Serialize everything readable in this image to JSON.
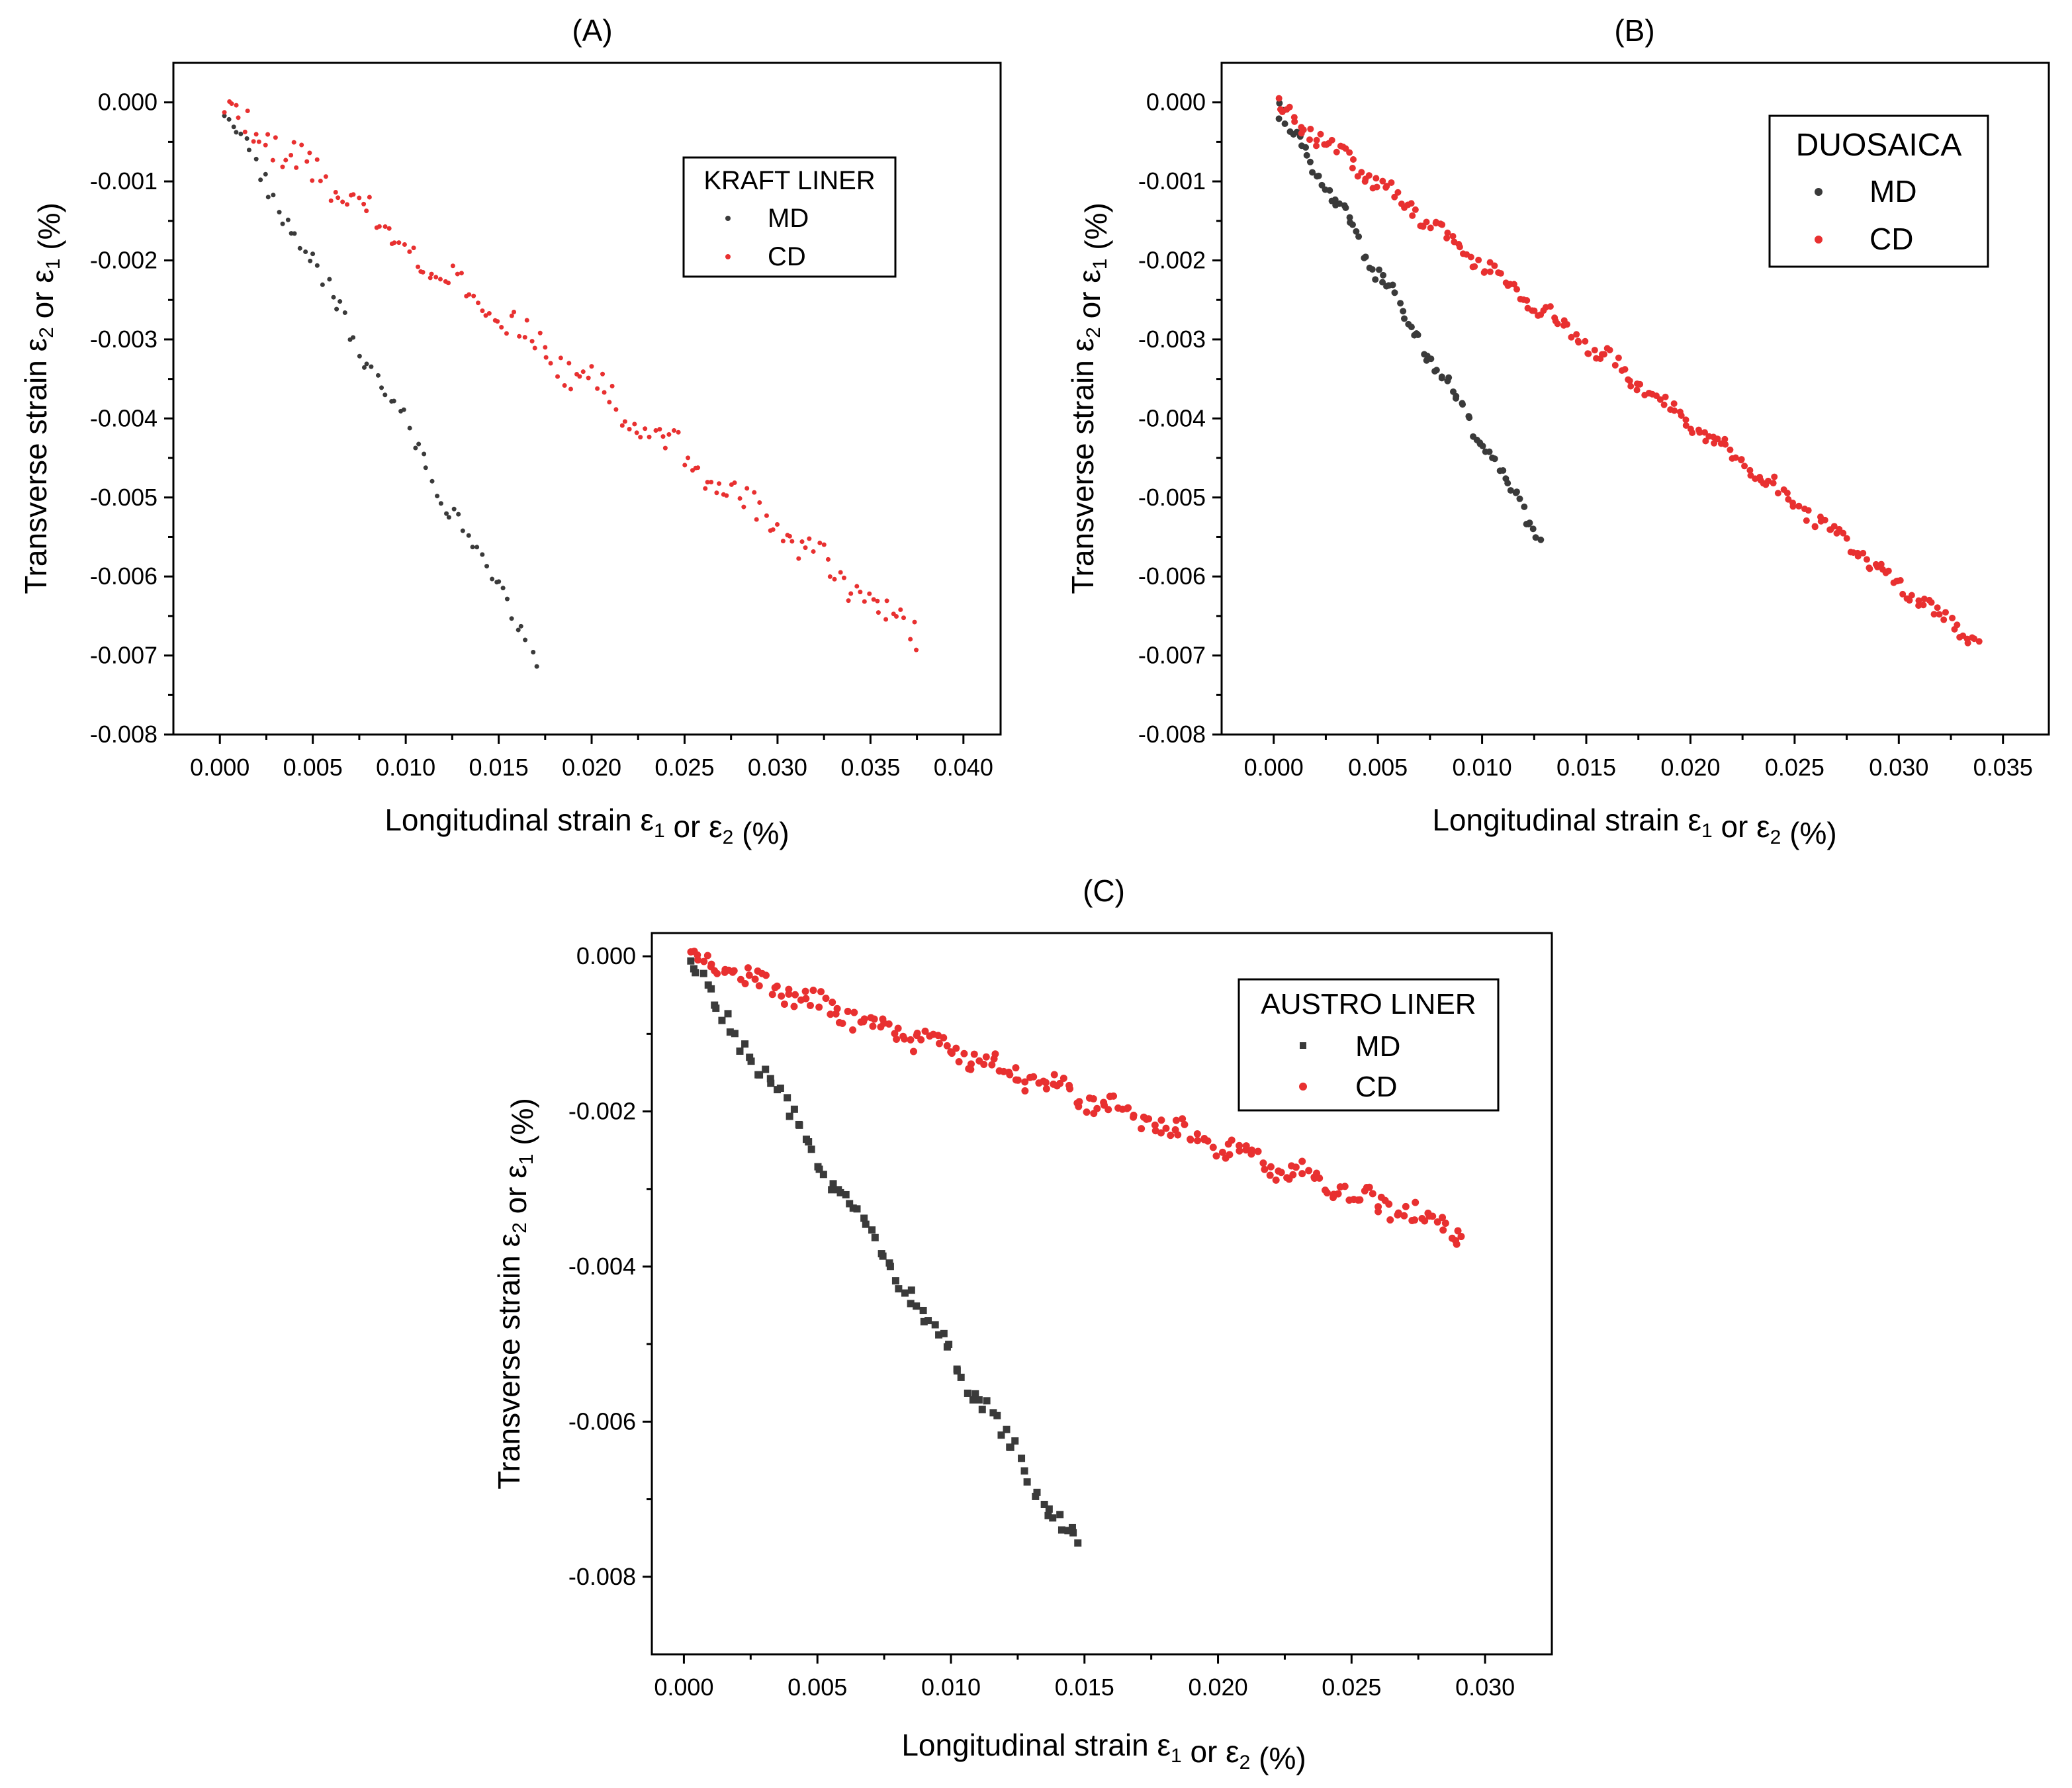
{
  "chart_data": [
    {
      "panel": "(A)",
      "type": "scatter",
      "xlabel": "Longitudinal strain ε1 or ε2 (%)",
      "ylabel": "Transverse strain ε2 or ε1 (%)",
      "xlim": [
        -0.0025,
        0.042
      ],
      "ylim": [
        -0.008,
        0.0005
      ],
      "xticks": [
        "0.000",
        "0.005",
        "0.010",
        "0.015",
        "0.020",
        "0.025",
        "0.030",
        "0.035",
        "0.040"
      ],
      "yticks": [
        "0.000",
        "-0.001",
        "-0.002",
        "-0.003",
        "-0.004",
        "-0.005",
        "-0.006",
        "-0.007",
        "-0.008"
      ],
      "legend": {
        "title": "KRAFT LINER",
        "position": "top-right"
      },
      "series": [
        {
          "name": "MD",
          "color": "#3a3a3a",
          "marker": "dot",
          "x_end": 0.017,
          "slope": -0.4118,
          "count": 70,
          "noise": 0.00012
        },
        {
          "name": "CD",
          "color": "#e83030",
          "marker": "dot",
          "x_end": 0.0375,
          "slope": -0.18,
          "count": 170,
          "noise": 0.00018
        }
      ]
    },
    {
      "panel": "(B)",
      "type": "scatter",
      "xlabel": "Longitudinal strain ε1 or ε2 (%)",
      "ylabel": "Transverse strain ε2 or ε1 (%)",
      "xlim": [
        -0.0025,
        0.0372
      ],
      "ylim": [
        -0.008,
        0.0005
      ],
      "xticks": [
        "0.000",
        "0.005",
        "0.010",
        "0.015",
        "0.020",
        "0.025",
        "0.030",
        "0.035"
      ],
      "yticks": [
        "0.000",
        "-0.001",
        "-0.002",
        "-0.003",
        "-0.004",
        "-0.005",
        "-0.006",
        "-0.007",
        "-0.008"
      ],
      "legend": {
        "title": "DUOSAICA",
        "position": "top-right"
      },
      "series": [
        {
          "name": "MD",
          "color": "#3a3a3a",
          "marker": "dot",
          "x_end": 0.0128,
          "slope": -0.43,
          "count": 90,
          "noise": 0.0001
        },
        {
          "name": "CD",
          "color": "#e83030",
          "marker": "dot",
          "x_end": 0.0338,
          "slope": -0.203,
          "count": 230,
          "noise": 9e-05
        }
      ]
    },
    {
      "panel": "(C)",
      "type": "scatter",
      "xlabel": "Longitudinal strain ε1 or ε2 (%)",
      "ylabel": "Transverse strain ε2 or ε1 (%)",
      "xlim": [
        -0.0012,
        0.0325
      ],
      "ylim": [
        -0.009,
        0.0003
      ],
      "xticks": [
        "0.000",
        "0.005",
        "0.010",
        "0.015",
        "0.020",
        "0.025",
        "0.030"
      ],
      "yticks": [
        "0.000",
        "-0.002",
        "-0.004",
        "-0.006",
        "-0.008"
      ],
      "legend": {
        "title": "AUSTRO LINER",
        "position": "top-right"
      },
      "series": [
        {
          "name": "MD",
          "color": "#3a3a3a",
          "marker": "square",
          "x_end": 0.0148,
          "slope": -0.516,
          "count": 95,
          "noise": 0.00012
        },
        {
          "name": "CD",
          "color": "#e83030",
          "marker": "dot",
          "x_end": 0.0292,
          "slope": -0.122,
          "count": 230,
          "noise": 0.00012
        }
      ]
    }
  ]
}
